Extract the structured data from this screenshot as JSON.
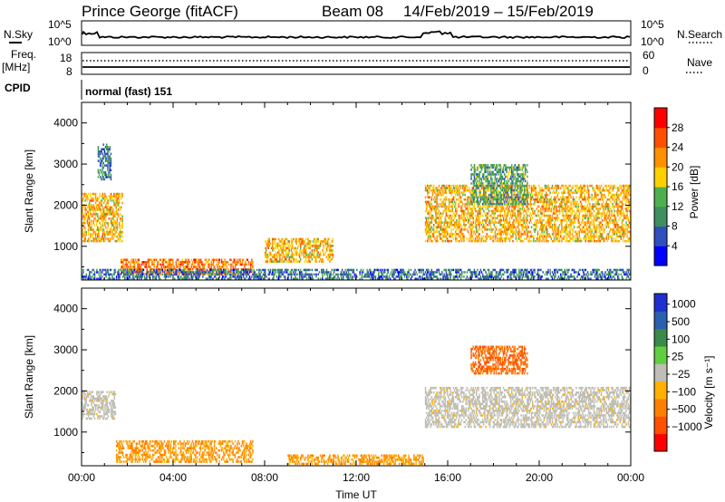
{
  "header": {
    "station": "Prince George (fitACF)",
    "beam": "Beam 08",
    "daterange": "14/Feb/2019 – 15/Feb/2019"
  },
  "side_labels": {
    "nsky": "N.Sky",
    "freq": "Freq.",
    "freq_unit": "[MHz]",
    "cpid": "CPID",
    "nsearch": "N.Search",
    "nave": "Nave"
  },
  "cpid_text": "normal (fast) 151",
  "noise_panel": {
    "left_ticks": [
      "10^5",
      "10^0"
    ],
    "right_ticks": [
      "10^5",
      "10^0"
    ]
  },
  "freq_panel": {
    "left_ticks": [
      "18",
      "8"
    ],
    "right_ticks": [
      "60",
      "0"
    ]
  },
  "colors": {
    "power_scale": [
      "#0000ff",
      "#2f4fbf",
      "#3f8f5f",
      "#4faf4f",
      "#ffd000",
      "#ff9000",
      "#ff5000",
      "#ff0000"
    ],
    "velocity_scale": [
      "#1f2fd0",
      "#2a5fb0",
      "#3a8a4a",
      "#5fcf3f",
      "#bebeb4",
      "#ffb000",
      "#ff8000",
      "#ff5000",
      "#ff0000"
    ],
    "ground_scatter": "#bebeb4"
  },
  "chart_data": [
    {
      "type": "heatmap",
      "panel": "power",
      "xlabel": "",
      "ylabel": "Slant Range [km]",
      "x_range_hours_ut": [
        0,
        24
      ],
      "ylim": [
        180,
        4500
      ],
      "yticks": [
        1000,
        2000,
        3000,
        4000
      ],
      "colorbar": {
        "label": "Power [dB]",
        "ticks": [
          "4",
          "8",
          "12",
          "16",
          "20",
          "24",
          "28"
        ],
        "range": [
          0,
          32
        ]
      },
      "features": [
        {
          "desc": "patch",
          "t": [
            0.0,
            1.8
          ],
          "r": [
            1100,
            2300
          ],
          "level": 20
        },
        {
          "desc": "patch",
          "t": [
            0.7,
            1.3
          ],
          "r": [
            2600,
            3500
          ],
          "level": 8
        },
        {
          "desc": "band",
          "t": [
            1.7,
            7.5
          ],
          "r": [
            300,
            700
          ],
          "level": 24
        },
        {
          "desc": "patch",
          "t": [
            8.0,
            11.0
          ],
          "r": [
            600,
            1200
          ],
          "level": 20
        },
        {
          "desc": "band",
          "t": [
            15.0,
            24.0
          ],
          "r": [
            1100,
            2500
          ],
          "level": 20
        },
        {
          "desc": "patch",
          "t": [
            17.0,
            19.5
          ],
          "r": [
            2000,
            3000
          ],
          "level": 12
        },
        {
          "desc": "near range",
          "t": [
            0.0,
            24.0
          ],
          "r": [
            180,
            450
          ],
          "level": 8
        }
      ]
    },
    {
      "type": "heatmap",
      "panel": "velocity",
      "xlabel": "Time UT",
      "ylabel": "Slant Range [km]",
      "x_range_hours_ut": [
        0,
        24
      ],
      "xticks": [
        "00:00",
        "04:00",
        "08:00",
        "12:00",
        "16:00",
        "20:00",
        "00:00"
      ],
      "ylim": [
        180,
        4500
      ],
      "yticks": [
        1000,
        2000,
        3000,
        4000
      ],
      "colorbar": {
        "label": "Velocity [m s⁻¹]",
        "ticks": [
          "1000",
          "500",
          "100",
          "25",
          "−25",
          "−100",
          "−500",
          "−1000"
        ]
      },
      "features": [
        {
          "desc": "ground scatter",
          "t": [
            15.0,
            24.0
          ],
          "r": [
            1100,
            2100
          ],
          "velocity": 0
        },
        {
          "desc": "ground scatter",
          "t": [
            0.0,
            1.5
          ],
          "r": [
            1300,
            2000
          ],
          "velocity": 0
        },
        {
          "desc": "receding",
          "t": [
            1.5,
            7.5
          ],
          "r": [
            250,
            800
          ],
          "velocity": -100
        },
        {
          "desc": "receding",
          "t": [
            17.0,
            19.5
          ],
          "r": [
            2400,
            3100
          ],
          "velocity": -500
        },
        {
          "desc": "mixed",
          "t": [
            9.0,
            15.0
          ],
          "r": [
            200,
            450
          ],
          "velocity": -100
        }
      ]
    }
  ]
}
